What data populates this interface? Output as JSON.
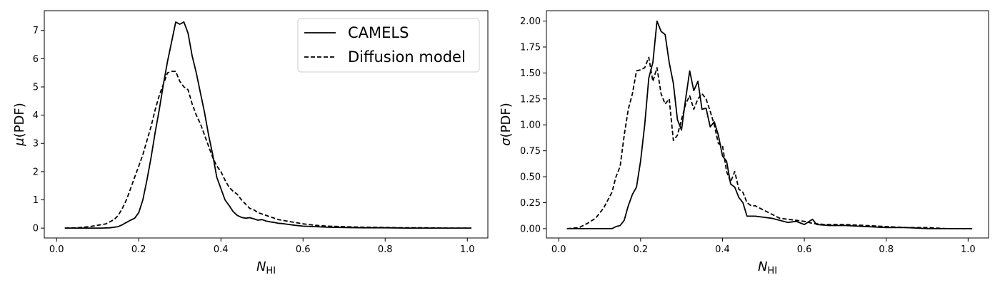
{
  "chart_data": [
    {
      "type": "line",
      "xlabel_base": "N",
      "xlabel_sub": "HI",
      "ylabel_greek": "μ",
      "ylabel_rest": "(PDF)",
      "xlim": [
        -0.03,
        1.05
      ],
      "ylim": [
        -0.35,
        7.7
      ],
      "xticks": [
        0.0,
        0.2,
        0.4,
        0.6,
        0.8,
        1.0
      ],
      "xtick_labels": [
        "0.0",
        "0.2",
        "0.4",
        "0.6",
        "0.8",
        "1.0"
      ],
      "yticks": [
        0,
        1,
        2,
        3,
        4,
        5,
        6,
        7
      ],
      "ytick_labels": [
        "0",
        "1",
        "2",
        "3",
        "4",
        "5",
        "6",
        "7"
      ],
      "legend": {
        "position": "top-right",
        "entries": [
          "CAMELS",
          "Diffusion model"
        ]
      },
      "series": [
        {
          "name": "CAMELS",
          "style": "solid",
          "x": [
            0.02,
            0.05,
            0.08,
            0.11,
            0.13,
            0.15,
            0.16,
            0.17,
            0.18,
            0.19,
            0.2,
            0.21,
            0.22,
            0.23,
            0.24,
            0.25,
            0.26,
            0.27,
            0.28,
            0.29,
            0.3,
            0.31,
            0.32,
            0.33,
            0.34,
            0.35,
            0.36,
            0.37,
            0.38,
            0.39,
            0.4,
            0.41,
            0.42,
            0.43,
            0.44,
            0.45,
            0.46,
            0.47,
            0.48,
            0.49,
            0.5,
            0.51,
            0.52,
            0.53,
            0.54,
            0.55,
            0.56,
            0.58,
            0.6,
            0.63,
            0.66,
            0.7,
            0.75,
            0.8,
            0.85,
            0.9,
            0.95,
            1.01
          ],
          "y": [
            0.0,
            0.0,
            0.0,
            0.0,
            0.01,
            0.05,
            0.12,
            0.2,
            0.28,
            0.35,
            0.55,
            1.0,
            1.7,
            2.5,
            3.4,
            4.2,
            5.1,
            5.9,
            6.6,
            7.3,
            7.22,
            7.3,
            6.9,
            6.1,
            5.5,
            4.8,
            4.1,
            3.3,
            2.6,
            1.8,
            1.4,
            1.0,
            0.8,
            0.58,
            0.45,
            0.38,
            0.35,
            0.37,
            0.33,
            0.28,
            0.3,
            0.25,
            0.22,
            0.2,
            0.17,
            0.16,
            0.14,
            0.1,
            0.07,
            0.05,
            0.03,
            0.02,
            0.01,
            0.01,
            0.0,
            0.0,
            0.0,
            0.0
          ]
        },
        {
          "name": "Diffusion model",
          "style": "dashed",
          "x": [
            0.02,
            0.05,
            0.08,
            0.1,
            0.12,
            0.14,
            0.15,
            0.16,
            0.17,
            0.18,
            0.19,
            0.2,
            0.21,
            0.22,
            0.23,
            0.24,
            0.25,
            0.26,
            0.27,
            0.28,
            0.29,
            0.3,
            0.31,
            0.32,
            0.33,
            0.34,
            0.35,
            0.36,
            0.37,
            0.38,
            0.39,
            0.4,
            0.41,
            0.42,
            0.43,
            0.44,
            0.45,
            0.46,
            0.47,
            0.48,
            0.49,
            0.5,
            0.52,
            0.54,
            0.56,
            0.58,
            0.6,
            0.63,
            0.66,
            0.7,
            0.75,
            0.8,
            0.85,
            0.9,
            0.95,
            1.01
          ],
          "y": [
            0.0,
            0.01,
            0.05,
            0.1,
            0.15,
            0.3,
            0.45,
            0.7,
            1.0,
            1.4,
            1.8,
            2.2,
            2.6,
            3.1,
            3.6,
            4.2,
            4.7,
            5.1,
            5.5,
            5.55,
            5.55,
            5.2,
            5.0,
            4.9,
            4.4,
            4.0,
            3.7,
            3.3,
            2.9,
            2.5,
            2.2,
            2.0,
            1.7,
            1.45,
            1.3,
            1.2,
            1.0,
            0.85,
            0.7,
            0.65,
            0.55,
            0.5,
            0.4,
            0.3,
            0.25,
            0.2,
            0.15,
            0.1,
            0.07,
            0.05,
            0.03,
            0.02,
            0.01,
            0.01,
            0.0,
            0.0
          ]
        }
      ]
    },
    {
      "type": "line",
      "xlabel_base": "N",
      "xlabel_sub": "HI",
      "ylabel_greek": "σ",
      "ylabel_rest": "(PDF)",
      "xlim": [
        -0.03,
        1.05
      ],
      "ylim": [
        -0.09,
        2.1
      ],
      "xticks": [
        0.0,
        0.2,
        0.4,
        0.6,
        0.8,
        1.0
      ],
      "xtick_labels": [
        "0.0",
        "0.2",
        "0.4",
        "0.6",
        "0.8",
        "1.0"
      ],
      "yticks": [
        0.0,
        0.25,
        0.5,
        0.75,
        1.0,
        1.25,
        1.5,
        1.75,
        2.0
      ],
      "ytick_labels": [
        "0.00",
        "0.25",
        "0.50",
        "0.75",
        "1.00",
        "1.25",
        "1.50",
        "1.75",
        "2.00"
      ],
      "series": [
        {
          "name": "CAMELS",
          "style": "solid",
          "x": [
            0.02,
            0.05,
            0.08,
            0.11,
            0.13,
            0.14,
            0.15,
            0.16,
            0.17,
            0.18,
            0.19,
            0.2,
            0.21,
            0.22,
            0.23,
            0.24,
            0.25,
            0.26,
            0.27,
            0.28,
            0.29,
            0.3,
            0.31,
            0.32,
            0.33,
            0.34,
            0.35,
            0.36,
            0.37,
            0.38,
            0.39,
            0.4,
            0.41,
            0.42,
            0.43,
            0.44,
            0.45,
            0.46,
            0.47,
            0.48,
            0.5,
            0.52,
            0.54,
            0.56,
            0.58,
            0.6,
            0.62,
            0.63,
            0.66,
            0.7,
            0.75,
            0.8,
            0.85,
            0.9,
            0.95,
            1.01
          ],
          "y": [
            0.0,
            0.0,
            0.0,
            0.0,
            0.0,
            0.02,
            0.03,
            0.08,
            0.22,
            0.33,
            0.4,
            0.65,
            1.0,
            1.45,
            1.6,
            2.0,
            1.9,
            1.87,
            1.6,
            1.4,
            1.05,
            0.95,
            1.25,
            1.52,
            1.33,
            1.42,
            1.15,
            1.16,
            0.98,
            1.03,
            0.9,
            0.7,
            0.65,
            0.43,
            0.4,
            0.3,
            0.25,
            0.12,
            0.12,
            0.12,
            0.11,
            0.1,
            0.08,
            0.06,
            0.07,
            0.04,
            0.09,
            0.04,
            0.03,
            0.03,
            0.02,
            0.01,
            0.01,
            0.0,
            0.0,
            0.0
          ]
        },
        {
          "name": "Diffusion model",
          "style": "dashed",
          "x": [
            0.02,
            0.05,
            0.07,
            0.09,
            0.11,
            0.13,
            0.14,
            0.15,
            0.16,
            0.17,
            0.18,
            0.19,
            0.2,
            0.21,
            0.22,
            0.23,
            0.24,
            0.25,
            0.26,
            0.27,
            0.28,
            0.29,
            0.3,
            0.31,
            0.32,
            0.33,
            0.34,
            0.35,
            0.36,
            0.37,
            0.38,
            0.39,
            0.4,
            0.41,
            0.42,
            0.43,
            0.44,
            0.45,
            0.46,
            0.47,
            0.48,
            0.5,
            0.52,
            0.54,
            0.56,
            0.58,
            0.6,
            0.62,
            0.65,
            0.7,
            0.75,
            0.8,
            0.85,
            0.9,
            0.95,
            1.01
          ],
          "y": [
            0.0,
            0.01,
            0.05,
            0.1,
            0.2,
            0.35,
            0.5,
            0.6,
            0.9,
            1.15,
            1.3,
            1.52,
            1.53,
            1.55,
            1.65,
            1.42,
            1.55,
            1.3,
            1.2,
            1.25,
            0.85,
            0.9,
            1.05,
            1.2,
            1.28,
            1.15,
            1.25,
            1.3,
            1.25,
            1.13,
            1.0,
            0.82,
            0.8,
            0.55,
            0.45,
            0.55,
            0.38,
            0.35,
            0.25,
            0.22,
            0.22,
            0.18,
            0.14,
            0.1,
            0.09,
            0.08,
            0.07,
            0.05,
            0.04,
            0.04,
            0.03,
            0.02,
            0.01,
            0.01,
            0.0,
            0.0
          ]
        }
      ]
    }
  ]
}
